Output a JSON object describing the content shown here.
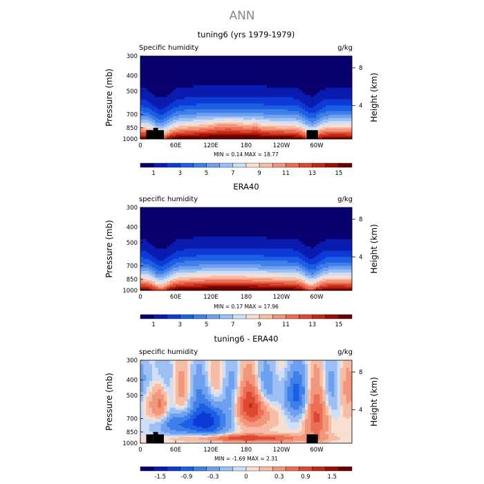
{
  "figure_title": "ANN",
  "chart_data": [
    {
      "type": "heatmap",
      "title": "tuning6 (yrs 1979-1979)",
      "left_label": "Specific humidity",
      "right_label": "g/kg",
      "ylabel": "Pressure (mb)",
      "y2label": "Height (km)",
      "x_ticks": [
        "0",
        "60E",
        "120E",
        "180",
        "120W",
        "60W"
      ],
      "y_ticks": [
        "300",
        "400",
        "500",
        "700",
        "850",
        "1000"
      ],
      "y2_ticks": [
        "8",
        "4"
      ],
      "stats": "MIN =    0.14   MAX =   18.77",
      "colorbar_labels": [
        "1",
        "3",
        "5",
        "7",
        "9",
        "11",
        "13",
        "15"
      ],
      "levels": [
        1,
        2,
        3,
        4,
        5,
        6,
        7,
        8,
        9,
        10,
        11,
        12,
        13,
        14,
        15
      ],
      "min": 0.14,
      "max": 18.77
    },
    {
      "type": "heatmap",
      "title": "ERA40",
      "left_label": "specific humidity",
      "right_label": "g/kg",
      "ylabel": "Pressure (mb)",
      "y2label": "Height (km)",
      "x_ticks": [
        "0",
        "60E",
        "120E",
        "180",
        "120W",
        "60W"
      ],
      "y_ticks": [
        "300",
        "400",
        "500",
        "700",
        "850",
        "1000"
      ],
      "y2_ticks": [
        "8",
        "4"
      ],
      "stats": "MIN =    0.17   MAX =   17.96",
      "colorbar_labels": [
        "1",
        "3",
        "5",
        "7",
        "9",
        "11",
        "13",
        "15"
      ],
      "levels": [
        1,
        2,
        3,
        4,
        5,
        6,
        7,
        8,
        9,
        10,
        11,
        12,
        13,
        14,
        15
      ],
      "min": 0.17,
      "max": 17.96
    },
    {
      "type": "heatmap",
      "title": "tuning6 - ERA40",
      "left_label": "specific humidity",
      "right_label": "g/kg",
      "ylabel": "Pressure (mb)",
      "y2label": "Height (km)",
      "x_ticks": [
        "0",
        "60E",
        "120E",
        "180",
        "120W",
        "60W"
      ],
      "y_ticks": [
        "300",
        "400",
        "500",
        "700",
        "850",
        "1000"
      ],
      "y2_ticks": [
        "8",
        "4"
      ],
      "stats": "MIN =   -1.69   MAX =    2.31",
      "colorbar_labels": [
        "-1.5",
        "-0.9",
        "-0.3",
        "0",
        "0.3",
        "0.9",
        "1.5"
      ],
      "levels": [
        -1.8,
        -1.5,
        -1.2,
        -0.9,
        -0.6,
        -0.3,
        -0.1,
        0,
        0.1,
        0.3,
        0.6,
        0.9,
        1.2,
        1.5,
        1.8
      ],
      "min": -1.69,
      "max": 2.31
    }
  ]
}
